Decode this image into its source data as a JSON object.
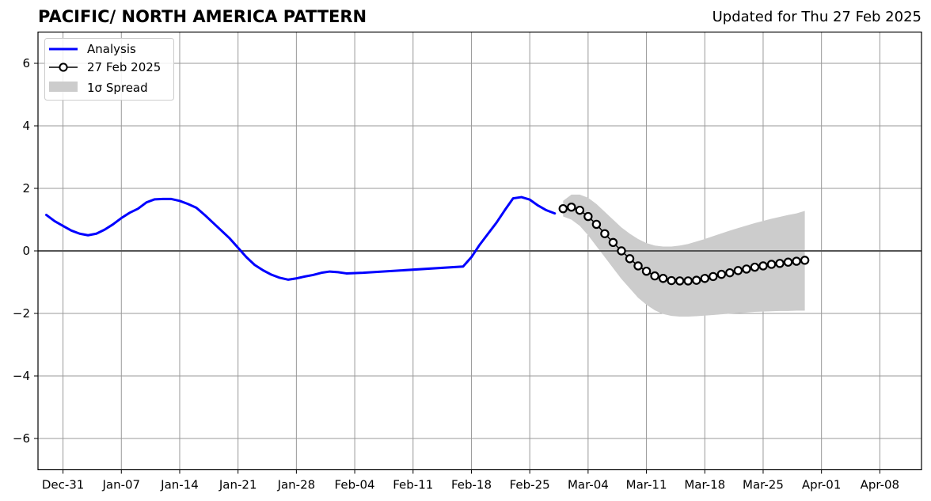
{
  "header": {
    "title": "PACIFIC/ NORTH AMERICA PATTERN",
    "subtitle": "Updated for Thu 27 Feb 2025"
  },
  "chart_data": {
    "type": "line",
    "title": "PACIFIC/ NORTH AMERICA PATTERN",
    "subtitle": "Updated for Thu 27 Feb 2025",
    "xlabel": "",
    "ylabel": "",
    "xlim": [
      "2024-12-28",
      "2025-04-13"
    ],
    "ylim": [
      -7,
      7
    ],
    "yticks": [
      -6,
      -4,
      -2,
      0,
      2,
      4,
      6
    ],
    "ytick_labels": [
      "−6",
      "−4",
      "−2",
      "0",
      "2",
      "4",
      "6"
    ],
    "xticks": [
      "2024-12-31",
      "2025-01-07",
      "2025-01-14",
      "2025-01-21",
      "2025-01-28",
      "2025-02-04",
      "2025-02-11",
      "2025-02-18",
      "2025-02-25",
      "2025-03-04",
      "2025-03-11",
      "2025-03-18",
      "2025-03-25",
      "2025-04-01",
      "2025-04-08"
    ],
    "xtick_labels": [
      "Dec-31",
      "Jan-07",
      "Jan-14",
      "Jan-21",
      "Jan-28",
      "Feb-04",
      "Feb-11",
      "Feb-18",
      "Feb-25",
      "Mar-04",
      "Mar-11",
      "Mar-18",
      "Mar-25",
      "Apr-01",
      "Apr-08"
    ],
    "grid": true,
    "zero_line": 0,
    "legend_position": "top-left",
    "series": [
      {
        "name": "Analysis",
        "color": "#0000ff",
        "style": "line",
        "points": [
          [
            "2024-12-29",
            1.15
          ],
          [
            "2024-12-30",
            0.95
          ],
          [
            "2024-12-31",
            0.8
          ],
          [
            "2025-01-01",
            0.65
          ],
          [
            "2025-01-02",
            0.55
          ],
          [
            "2025-01-03",
            0.5
          ],
          [
            "2025-01-04",
            0.55
          ],
          [
            "2025-01-05",
            0.68
          ],
          [
            "2025-01-06",
            0.85
          ],
          [
            "2025-01-07",
            1.05
          ],
          [
            "2025-01-08",
            1.22
          ],
          [
            "2025-01-09",
            1.35
          ],
          [
            "2025-01-10",
            1.55
          ],
          [
            "2025-01-11",
            1.65
          ],
          [
            "2025-01-12",
            1.66
          ],
          [
            "2025-01-13",
            1.66
          ],
          [
            "2025-01-14",
            1.6
          ],
          [
            "2025-01-15",
            1.5
          ],
          [
            "2025-01-16",
            1.38
          ],
          [
            "2025-01-17",
            1.15
          ],
          [
            "2025-01-18",
            0.9
          ],
          [
            "2025-01-19",
            0.65
          ],
          [
            "2025-01-20",
            0.4
          ],
          [
            "2025-01-21",
            0.1
          ],
          [
            "2025-01-22",
            -0.2
          ],
          [
            "2025-01-23",
            -0.45
          ],
          [
            "2025-01-24",
            -0.62
          ],
          [
            "2025-01-25",
            -0.76
          ],
          [
            "2025-01-26",
            -0.86
          ],
          [
            "2025-01-27",
            -0.92
          ],
          [
            "2025-01-28",
            -0.88
          ],
          [
            "2025-01-29",
            -0.82
          ],
          [
            "2025-01-30",
            -0.77
          ],
          [
            "2025-01-31",
            -0.7
          ],
          [
            "2025-02-01",
            -0.66
          ],
          [
            "2025-02-02",
            -0.68
          ],
          [
            "2025-02-03",
            -0.72
          ],
          [
            "2025-02-05",
            -0.7
          ],
          [
            "2025-02-17",
            -0.5
          ],
          [
            "2025-02-18",
            -0.2
          ],
          [
            "2025-02-19",
            0.2
          ],
          [
            "2025-02-20",
            0.55
          ],
          [
            "2025-02-21",
            0.9
          ],
          [
            "2025-02-22",
            1.3
          ],
          [
            "2025-02-23",
            1.68
          ],
          [
            "2025-02-24",
            1.72
          ],
          [
            "2025-02-25",
            1.64
          ],
          [
            "2025-02-26",
            1.45
          ],
          [
            "2025-02-27",
            1.3
          ],
          [
            "2025-02-28",
            1.2
          ]
        ]
      },
      {
        "name": "27 Feb 2025",
        "color": "#000000",
        "style": "line-markers",
        "points": [
          [
            "2025-03-01",
            1.35
          ],
          [
            "2025-03-02",
            1.4
          ],
          [
            "2025-03-03",
            1.3
          ],
          [
            "2025-03-04",
            1.1
          ],
          [
            "2025-03-05",
            0.85
          ],
          [
            "2025-03-06",
            0.55
          ],
          [
            "2025-03-07",
            0.27
          ],
          [
            "2025-03-08",
            0.0
          ],
          [
            "2025-03-09",
            -0.25
          ],
          [
            "2025-03-10",
            -0.48
          ],
          [
            "2025-03-11",
            -0.65
          ],
          [
            "2025-03-12",
            -0.8
          ],
          [
            "2025-03-13",
            -0.88
          ],
          [
            "2025-03-14",
            -0.95
          ],
          [
            "2025-03-15",
            -0.96
          ],
          [
            "2025-03-16",
            -0.96
          ],
          [
            "2025-03-17",
            -0.94
          ],
          [
            "2025-03-18",
            -0.88
          ],
          [
            "2025-03-19",
            -0.82
          ],
          [
            "2025-03-20",
            -0.75
          ],
          [
            "2025-03-21",
            -0.7
          ],
          [
            "2025-03-22",
            -0.63
          ],
          [
            "2025-03-23",
            -0.58
          ],
          [
            "2025-03-24",
            -0.52
          ],
          [
            "2025-03-25",
            -0.48
          ],
          [
            "2025-03-26",
            -0.43
          ],
          [
            "2025-03-27",
            -0.4
          ],
          [
            "2025-03-28",
            -0.36
          ],
          [
            "2025-03-29",
            -0.33
          ],
          [
            "2025-03-30",
            -0.3
          ]
        ]
      }
    ],
    "spread": {
      "name": "1σ Spread",
      "color": "#cccccc",
      "points": [
        [
          "2025-03-01",
          1.1,
          1.6
        ],
        [
          "2025-03-02",
          1.0,
          1.8
        ],
        [
          "2025-03-03",
          0.8,
          1.8
        ],
        [
          "2025-03-04",
          0.5,
          1.7
        ],
        [
          "2025-03-05",
          0.15,
          1.5
        ],
        [
          "2025-03-06",
          -0.2,
          1.25
        ],
        [
          "2025-03-07",
          -0.55,
          1.0
        ],
        [
          "2025-03-08",
          -0.9,
          0.75
        ],
        [
          "2025-03-09",
          -1.2,
          0.55
        ],
        [
          "2025-03-10",
          -1.5,
          0.38
        ],
        [
          "2025-03-11",
          -1.72,
          0.25
        ],
        [
          "2025-03-12",
          -1.9,
          0.17
        ],
        [
          "2025-03-13",
          -2.02,
          0.14
        ],
        [
          "2025-03-14",
          -2.08,
          0.14
        ],
        [
          "2025-03-15",
          -2.1,
          0.17
        ],
        [
          "2025-03-16",
          -2.1,
          0.22
        ],
        [
          "2025-03-17",
          -2.09,
          0.3
        ],
        [
          "2025-03-18",
          -2.07,
          0.38
        ],
        [
          "2025-03-19",
          -2.05,
          0.47
        ],
        [
          "2025-03-20",
          -2.03,
          0.56
        ],
        [
          "2025-03-21",
          -2.01,
          0.65
        ],
        [
          "2025-03-22",
          -1.99,
          0.73
        ],
        [
          "2025-03-23",
          -1.97,
          0.81
        ],
        [
          "2025-03-24",
          -1.95,
          0.89
        ],
        [
          "2025-03-25",
          -1.94,
          0.96
        ],
        [
          "2025-03-26",
          -1.93,
          1.03
        ],
        [
          "2025-03-27",
          -1.92,
          1.09
        ],
        [
          "2025-03-28",
          -1.92,
          1.15
        ],
        [
          "2025-03-29",
          -1.91,
          1.2
        ],
        [
          "2025-03-30",
          -1.91,
          1.28
        ]
      ]
    }
  }
}
